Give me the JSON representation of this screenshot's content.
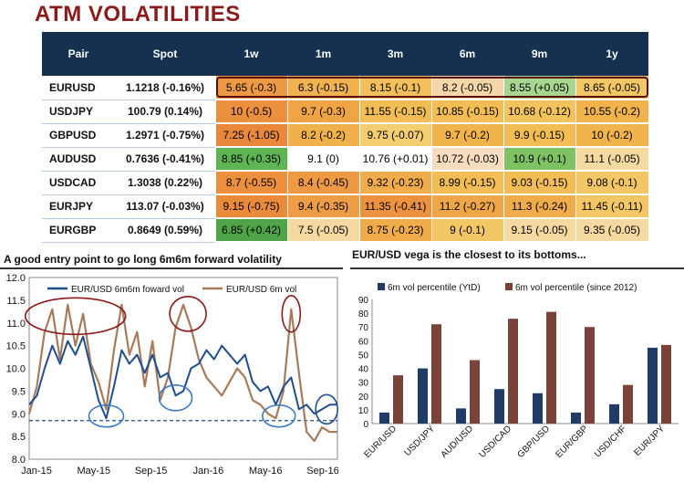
{
  "title": "ATM VOLATILITIES",
  "table": {
    "headers": [
      "Pair",
      "Spot",
      "1w",
      "1m",
      "3m",
      "6m",
      "9m",
      "1y"
    ],
    "rows": [
      {
        "pair": "EURUSD",
        "spot": "1.1218 (-0.16%)",
        "cells": [
          {
            "v": "5.65 (-0.3)",
            "c": "#ee9a45"
          },
          {
            "v": "6.3 (-0.15)",
            "c": "#f0b24e"
          },
          {
            "v": "8.15 (-0.1)",
            "c": "#f2bf5a"
          },
          {
            "v": "8.2 (-0.05)",
            "c": "#f5d6a8"
          },
          {
            "v": "8.55 (+0.05)",
            "c": "#a8d58f"
          },
          {
            "v": "8.65 (-0.05)",
            "c": "#f3c666"
          }
        ]
      },
      {
        "pair": "USDJPY",
        "spot": "100.79 (0.14%)",
        "cells": [
          {
            "v": "10 (-0.5)",
            "c": "#ec8f3f"
          },
          {
            "v": "9.7 (-0.3)",
            "c": "#efa545"
          },
          {
            "v": "11.55 (-0.15)",
            "c": "#f2bd55"
          },
          {
            "v": "10.85 (-0.15)",
            "c": "#f2bd55"
          },
          {
            "v": "10.68 (-0.12)",
            "c": "#f3c45d"
          },
          {
            "v": "10.55 (-0.2)",
            "c": "#f1b34c"
          }
        ]
      },
      {
        "pair": "GBPUSD",
        "spot": "1.2971 (-0.75%)",
        "cells": [
          {
            "v": "7.25 (-1.05)",
            "c": "#e9883a"
          },
          {
            "v": "8.2 (-0.2)",
            "c": "#f0b04c"
          },
          {
            "v": "9.75 (-0.07)",
            "c": "#f4cf72"
          },
          {
            "v": "9.7 (-0.2)",
            "c": "#f1b34c"
          },
          {
            "v": "9.9 (-0.15)",
            "c": "#f2bd55"
          },
          {
            "v": "10 (-0.2)",
            "c": "#f1b34c"
          }
        ]
      },
      {
        "pair": "AUDUSD",
        "spot": "0.7636 (-0.41%)",
        "cells": [
          {
            "v": "8.85 (+0.35)",
            "c": "#5fb453"
          },
          {
            "v": "9.1 (0)",
            "c": "#ffffff"
          },
          {
            "v": "10.76 (+0.01)",
            "c": "#ffffff"
          },
          {
            "v": "10.72 (-0.03)",
            "c": "#f7dcc0"
          },
          {
            "v": "10.9 (+0.1)",
            "c": "#7fc263"
          },
          {
            "v": "11.1 (-0.05)",
            "c": "#f4d9a0"
          }
        ]
      },
      {
        "pair": "USDCAD",
        "spot": "1.3038 (0.22%)",
        "cells": [
          {
            "v": "8.7 (-0.55)",
            "c": "#ec8f3f"
          },
          {
            "v": "8.4 (-0.45)",
            "c": "#ee9a45"
          },
          {
            "v": "9.32 (-0.23)",
            "c": "#f0ab4a"
          },
          {
            "v": "8.99 (-0.15)",
            "c": "#f2bd55"
          },
          {
            "v": "9.03 (-0.15)",
            "c": "#f2bd55"
          },
          {
            "v": "9.08 (-0.1)",
            "c": "#f3c666"
          }
        ]
      },
      {
        "pair": "EURJPY",
        "spot": "113.07 (-0.03%)",
        "cells": [
          {
            "v": "9.15 (-0.75)",
            "c": "#ea8a3b"
          },
          {
            "v": "9.4 (-0.35)",
            "c": "#ee9c45"
          },
          {
            "v": "11.35 (-0.41)",
            "c": "#ec923f"
          },
          {
            "v": "11.2 (-0.27)",
            "c": "#efa648"
          },
          {
            "v": "11.3 (-0.24)",
            "c": "#f0ab4a"
          },
          {
            "v": "11.45 (-0.11)",
            "c": "#f3c666"
          }
        ]
      },
      {
        "pair": "EURGBP",
        "spot": "0.8649 (0.59%)",
        "cells": [
          {
            "v": "6.85 (+0.42)",
            "c": "#4fa447"
          },
          {
            "v": "7.5 (-0.05)",
            "c": "#f4d9a0"
          },
          {
            "v": "8.75 (-0.23)",
            "c": "#f0ab4a"
          },
          {
            "v": "9 (-0.1)",
            "c": "#f3c666"
          },
          {
            "v": "9.15 (-0.05)",
            "c": "#f4d9a0"
          },
          {
            "v": "9.35 (-0.05)",
            "c": "#f4d9a0"
          }
        ]
      }
    ]
  },
  "chart_data": [
    {
      "type": "line",
      "title": "A good entry point to go long 6m6m forward volatility",
      "xlabel": "",
      "ylabel": "",
      "ylim": [
        8.0,
        12.0
      ],
      "yticks": [
        "8.0",
        "8.5",
        "9.0",
        "9.5",
        "10.0",
        "10.5",
        "11.0",
        "11.5",
        "12.0"
      ],
      "xticks": [
        "Jan-15",
        "May-15",
        "Sep-15",
        "Jan-16",
        "May-16",
        "Sep-16"
      ],
      "xrange": [
        0,
        20
      ],
      "reference_level": 8.85,
      "series": [
        {
          "name": "EUR/USD 6m6m foward vol",
          "color": "#1f4e8c",
          "x": [
            0,
            0.5,
            1,
            1.5,
            2,
            2.5,
            3,
            3.5,
            4,
            4.5,
            5,
            5.5,
            6,
            6.5,
            7,
            7.5,
            8,
            8.5,
            9,
            9.5,
            10,
            10.5,
            11,
            11.5,
            12,
            12.5,
            13,
            13.5,
            14,
            14.5,
            15,
            15.5,
            16,
            16.5,
            17,
            17.5,
            18,
            18.5,
            19,
            19.5,
            20
          ],
          "values": [
            9.2,
            9.4,
            10.0,
            10.5,
            10.1,
            10.6,
            10.3,
            10.7,
            10.0,
            9.3,
            8.9,
            9.6,
            10.4,
            10.1,
            10.3,
            9.9,
            10.3,
            9.8,
            9.9,
            9.4,
            9.5,
            10.0,
            10.1,
            10.4,
            10.2,
            10.5,
            10.3,
            10.1,
            10.3,
            9.7,
            9.5,
            9.6,
            9.2,
            9.6,
            9.8,
            9.1,
            9.2,
            9.0,
            9.1,
            9.2,
            9.2
          ]
        },
        {
          "name": "EUR/USD 6m vol",
          "color": "#a67b5b",
          "x": [
            0,
            0.5,
            1,
            1.5,
            2,
            2.5,
            3,
            3.5,
            4,
            4.5,
            5,
            5.5,
            6,
            6.5,
            7,
            7.5,
            8,
            8.5,
            9,
            9.5,
            10,
            10.5,
            11,
            11.5,
            12,
            12.5,
            13,
            13.5,
            14,
            14.5,
            15,
            15.5,
            16,
            16.5,
            17,
            17.5,
            18,
            18.5,
            19,
            19.5,
            20
          ],
          "values": [
            9.0,
            9.6,
            10.8,
            11.3,
            10.2,
            11.4,
            10.5,
            11.2,
            10.1,
            9.7,
            9.1,
            10.4,
            11.4,
            10.3,
            10.8,
            9.6,
            10.6,
            9.3,
            9.8,
            10.9,
            11.4,
            10.9,
            10.2,
            9.8,
            9.6,
            9.4,
            9.7,
            10.0,
            9.8,
            9.3,
            9.2,
            9.0,
            8.9,
            9.5,
            11.3,
            9.9,
            8.6,
            8.4,
            8.7,
            8.6,
            8.6
          ]
        }
      ]
    },
    {
      "type": "bar",
      "title": "EUR/USD vega is the closest to its bottoms...",
      "categories": [
        "EUR/USD",
        "USD/JPY",
        "AUD/USD",
        "USD/CAD",
        "GBP/USD",
        "EUR/GBP",
        "USD/CHF",
        "EUR/JPY"
      ],
      "ylim": [
        0,
        90
      ],
      "yticks": [
        "0",
        "10",
        "20",
        "30",
        "40",
        "50",
        "60",
        "70",
        "80",
        "90"
      ],
      "series": [
        {
          "name": "6m vol percentile (YtD)",
          "color": "#1f3b66",
          "values": [
            8,
            40,
            11,
            25,
            22,
            8,
            14,
            55
          ]
        },
        {
          "name": "6m vol percentile (since 2012)",
          "color": "#7a4238",
          "values": [
            35,
            72,
            46,
            76,
            81,
            70,
            28,
            57
          ]
        }
      ]
    }
  ]
}
